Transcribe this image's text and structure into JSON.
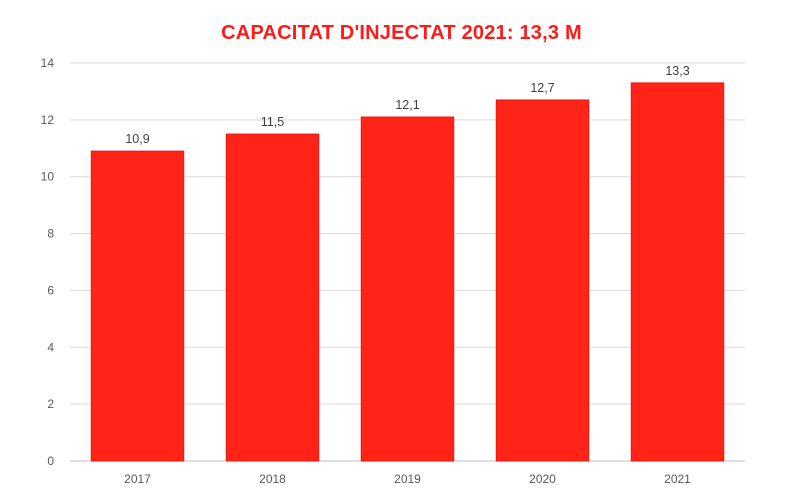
{
  "chart_data": {
    "type": "bar",
    "title": "CAPACITAT D'INJECTAT 2021: 13,3 M",
    "categories": [
      "2017",
      "2018",
      "2019",
      "2020",
      "2021"
    ],
    "values": [
      10.9,
      11.5,
      12.1,
      12.7,
      13.3
    ],
    "data_labels": [
      "10,9",
      "11,5",
      "12,1",
      "12,7",
      "13,3"
    ],
    "y_ticks": [
      0,
      2,
      4,
      6,
      8,
      10,
      12,
      14
    ],
    "ylim": [
      0,
      14
    ],
    "xlabel": "",
    "ylabel": "",
    "grid": true,
    "legend": "none",
    "colors": {
      "bar_fill": "#ff2318",
      "bar_stroke": "#e81a10",
      "title": "#ff1a1a",
      "gridline": "#d9d9d9",
      "axis": "#bfbfbf"
    }
  }
}
